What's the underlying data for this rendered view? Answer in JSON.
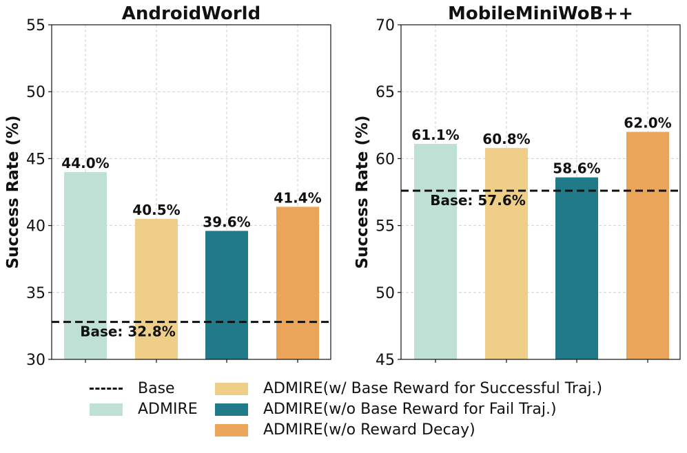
{
  "legend": {
    "base_label": "Base",
    "items": [
      {
        "label": "ADMIRE",
        "color": "#BFE0D4"
      },
      {
        "label": "ADMIRE(w/ Base Reward for Successful Traj.)",
        "color": "#EFCF88"
      },
      {
        "label": "ADMIRE(w/o Base Reward for Fail Traj.)",
        "color": "#217A87"
      },
      {
        "label": "ADMIRE(w/o Reward Decay)",
        "color": "#EBA55A"
      }
    ]
  },
  "chart_data": [
    {
      "type": "bar",
      "title": "AndroidWorld",
      "ylabel": "Success Rate (%)",
      "xlabel": "",
      "ylim": [
        30,
        55
      ],
      "yticks": [
        30,
        35,
        40,
        45,
        50,
        55
      ],
      "grid": true,
      "categories": [
        "ADMIRE",
        "ADMIRE(w/ Base Reward for Successful Traj.)",
        "ADMIRE(w/o Base Reward for Fail Traj.)",
        "ADMIRE(w/o Reward Decay)"
      ],
      "values": [
        44.0,
        40.5,
        39.6,
        41.4
      ],
      "value_labels": [
        "44.0%",
        "40.5%",
        "39.6%",
        "41.4%"
      ],
      "baseline": {
        "value": 32.8,
        "label": "Base: 32.8%"
      }
    },
    {
      "type": "bar",
      "title": "MobileMiniWoB++",
      "ylabel": "Success Rate (%)",
      "xlabel": "",
      "ylim": [
        45,
        70
      ],
      "yticks": [
        45,
        50,
        55,
        60,
        65,
        70
      ],
      "grid": true,
      "categories": [
        "ADMIRE",
        "ADMIRE(w/ Base Reward for Successful Traj.)",
        "ADMIRE(w/o Base Reward for Fail Traj.)",
        "ADMIRE(w/o Reward Decay)"
      ],
      "values": [
        61.1,
        60.8,
        58.6,
        62.0
      ],
      "value_labels": [
        "61.1%",
        "60.8%",
        "58.6%",
        "62.0%"
      ],
      "baseline": {
        "value": 57.6,
        "label": "Base: 57.6%"
      }
    }
  ]
}
